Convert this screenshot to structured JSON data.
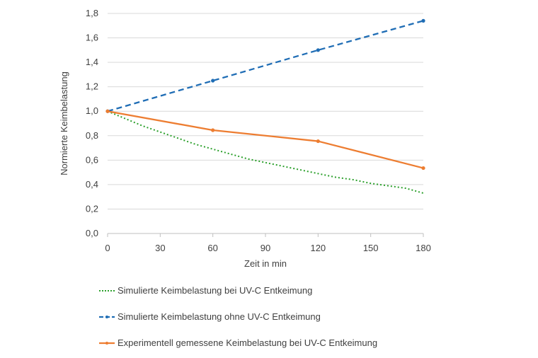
{
  "chart_data": {
    "type": "line",
    "title": "",
    "xlabel": "Zeit in min",
    "ylabel": "Normierte Keimbelastung",
    "x_ticks": [
      "0",
      "30",
      "60",
      "90",
      "120",
      "150",
      "180"
    ],
    "y_ticks": [
      "0,0",
      "0,2",
      "0,4",
      "0,6",
      "0,8",
      "1,0",
      "1,2",
      "1,4",
      "1,6",
      "1,8"
    ],
    "xlim": [
      0,
      180
    ],
    "ylim": [
      0,
      1.8
    ],
    "grid": "horizontal",
    "legend_position": "bottom",
    "series": [
      {
        "name": "Simulierte Keimbelastung bei UV-C Entkeimung",
        "color": "#2ca02c",
        "style": "dotted",
        "markers": false,
        "x": [
          0,
          10,
          20,
          30,
          40,
          50,
          60,
          70,
          80,
          90,
          100,
          110,
          120,
          130,
          140,
          150,
          160,
          170,
          180
        ],
        "y": [
          1.0,
          0.94,
          0.88,
          0.83,
          0.78,
          0.73,
          0.69,
          0.65,
          0.61,
          0.58,
          0.55,
          0.52,
          0.49,
          0.46,
          0.44,
          0.41,
          0.39,
          0.37,
          0.33
        ]
      },
      {
        "name": "Simulierte Keimbelastung ohne UV-C Entkeimung",
        "color": "#1f6db5",
        "style": "dashed",
        "markers": true,
        "x": [
          0,
          60,
          120,
          180
        ],
        "y": [
          1.0,
          1.25,
          1.5,
          1.74
        ]
      },
      {
        "name": "Experimentell gemessene Keimbelastung bei UV-C Entkeimung",
        "color": "#ed7d31",
        "style": "solid",
        "markers": true,
        "x": [
          0,
          60,
          120,
          180
        ],
        "y": [
          1.0,
          0.845,
          0.755,
          0.535
        ]
      }
    ]
  }
}
